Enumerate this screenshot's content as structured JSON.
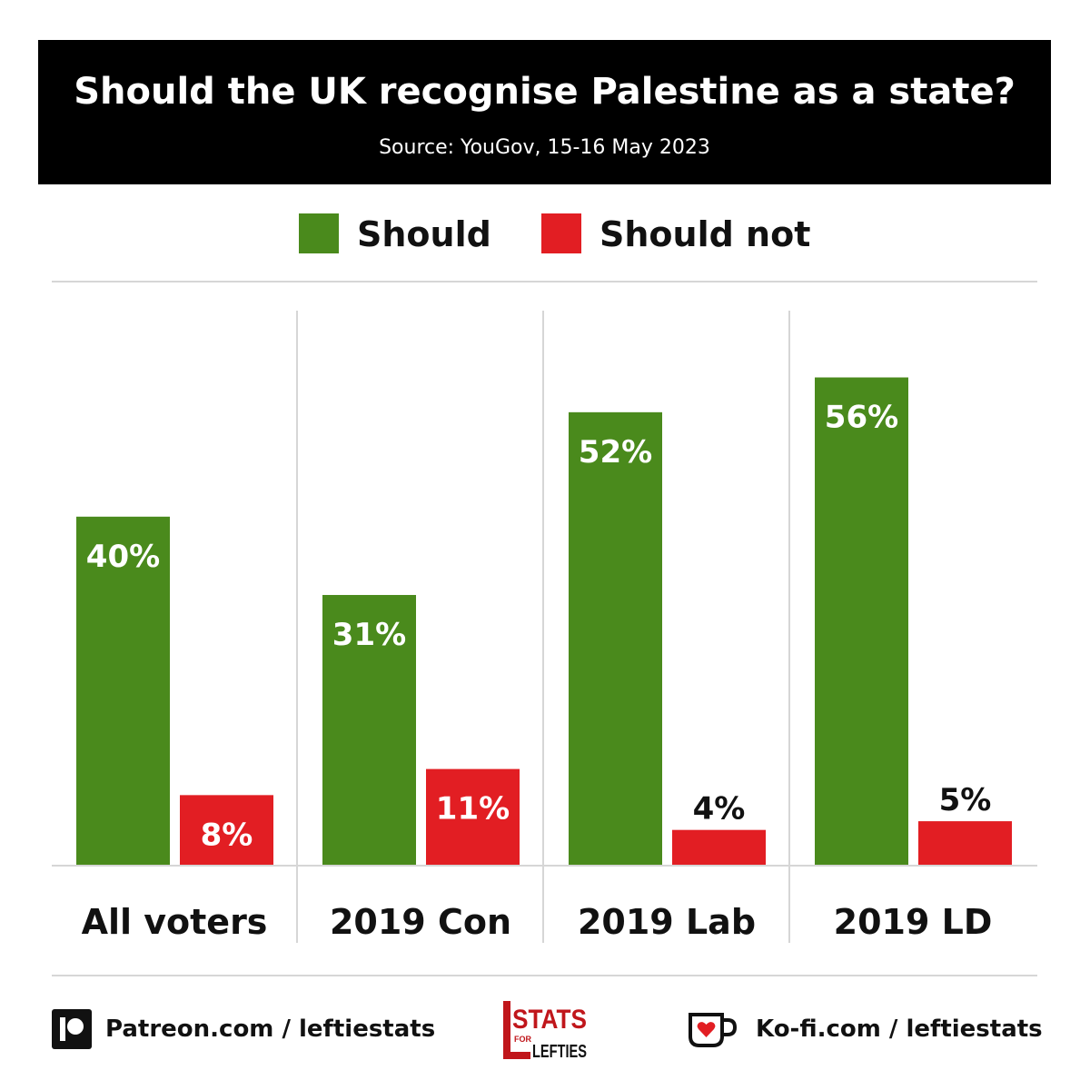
{
  "header": {
    "title": "Should the UK recognise Palestine as a state?",
    "subtitle": "Source: YouGov, 15-16 May 2023"
  },
  "chart_data": {
    "type": "bar",
    "title": "Should the UK recognise Palestine as a state?",
    "subtitle": "Source: YouGov, 15-16 May 2023",
    "categories": [
      "All voters",
      "2019 Con",
      "2019 Lab",
      "2019 LD"
    ],
    "series": [
      {
        "name": "Should",
        "values": [
          40,
          31,
          52,
          56
        ],
        "labels": [
          "40%",
          "31%",
          "52%",
          "56%"
        ],
        "color": "#4a8a1c"
      },
      {
        "name": "Should not",
        "values": [
          8,
          11,
          4,
          5
        ],
        "labels": [
          "8%",
          "11%",
          "4%",
          "5%"
        ],
        "color": "#e21e23"
      }
    ],
    "ylim": [
      0,
      62
    ],
    "legend": "top",
    "grid": false
  },
  "footer": {
    "patreon": "Patreon.com / leftiestats",
    "kofi": "Ko-fi.com / leftiestats",
    "logo_text_top": "STATS",
    "logo_text_for": "FOR",
    "logo_text_bottom": "LEFTIES"
  },
  "colors": {
    "should": "#4a8a1c",
    "should_not": "#e21e23",
    "banner": "#000000"
  },
  "icons": {
    "patreon": "patreon-icon",
    "kofi": "kofi-cup-icon"
  }
}
